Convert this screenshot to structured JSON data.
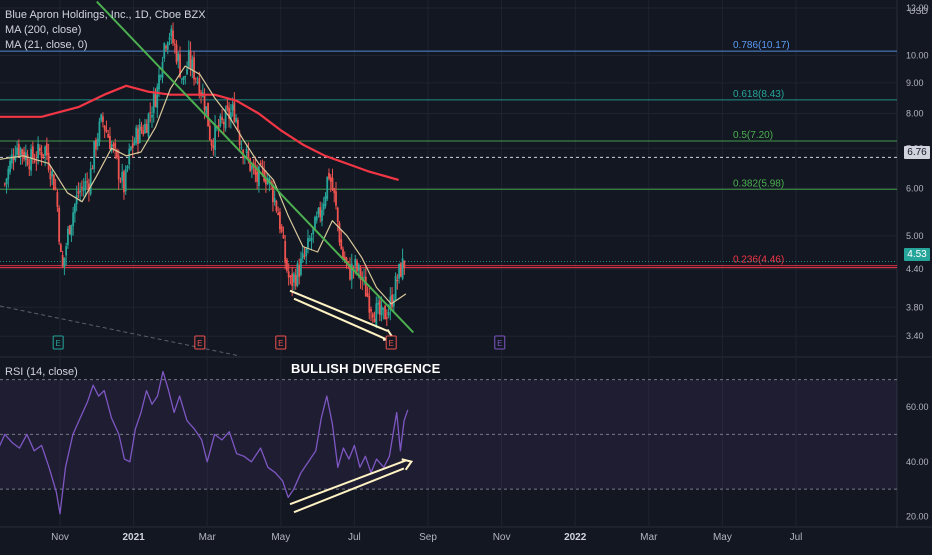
{
  "header": {
    "title": "Blue Apron Holdings, Inc., 1D, Cboe BZX",
    "ma200_label": "MA (200, close)",
    "ma21_label": "MA (21, close, 0)",
    "rsi_label": "RSI (14, close)",
    "annotation": "BULLISH DIVERGENCE",
    "currency": "USD"
  },
  "colors": {
    "background": "#131722",
    "up": "#26a69a",
    "down": "#ef5350",
    "ma200": "#f23645",
    "ma21": "#d8c89a",
    "trendline": "#4caf50",
    "rsi": "#7e57c2",
    "fib_786": "#5b9cf6",
    "fib_618": "#26a69a",
    "fib_5": "#4caf50",
    "fib_382": "#4caf50",
    "fib_236": "#f23645",
    "divergence": "#fff3c4"
  },
  "chart_data": {
    "type": "candlestick",
    "symbol": "Blue Apron Holdings, Inc.",
    "interval": "1D",
    "exchange": "Cboe BZX",
    "price_axis": {
      "scale": "log",
      "range": [
        3.2,
        12.0
      ],
      "ticks": [
        "12.00",
        "10.00",
        "9.00",
        "8.00",
        "7.00",
        "6.00",
        "5.00",
        "4.40",
        "3.80",
        "3.40"
      ],
      "tick_values": [
        12.0,
        10.0,
        9.0,
        8.0,
        7.0,
        6.0,
        5.0,
        4.4,
        3.8,
        3.4
      ]
    },
    "rsi_axis": {
      "range": [
        18,
        75
      ],
      "ticks": [
        "60.00",
        "40.00",
        "20.00"
      ],
      "tick_values": [
        60,
        40,
        20
      ],
      "bands": [
        70,
        50,
        30
      ]
    },
    "time_axis": {
      "ticks": [
        "Nov",
        "2021",
        "Mar",
        "May",
        "Jul",
        "Sep",
        "Nov",
        "2022",
        "Mar",
        "May",
        "Jul"
      ],
      "tick_month_index": [
        0,
        2,
        4,
        6,
        8,
        10,
        12,
        14,
        16,
        18,
        20
      ]
    },
    "last_price_labels": [
      {
        "text": "6.76",
        "value": 6.76
      },
      {
        "text": "4.53",
        "value": 4.53
      }
    ],
    "fibonacci": [
      {
        "label": "0.786(10.17)",
        "value": 10.17
      },
      {
        "label": "0.618(8.43)",
        "value": 8.43
      },
      {
        "label": "0.5(7.20)",
        "value": 7.2
      },
      {
        "label": "0.382(5.98)",
        "value": 5.98
      },
      {
        "label": "0.236(4.46)",
        "value": 4.46
      }
    ],
    "horizontal_levels": [
      {
        "name": "red-level",
        "value": 4.46
      },
      {
        "name": "dashed-level",
        "value": 6.76
      },
      {
        "name": "teal-level",
        "value": 4.53
      }
    ],
    "earnings_markers": [
      {
        "label": "E",
        "month_index": -0.05,
        "color": "#26a69a"
      },
      {
        "label": "E",
        "month_index": 3.8,
        "color": "#ef5350"
      },
      {
        "label": "E",
        "month_index": 6.0,
        "color": "#ef5350"
      },
      {
        "label": "E",
        "month_index": 9.0,
        "color": "#ef5350"
      },
      {
        "label": "E",
        "month_index": 11.95,
        "color": "#7e57c2"
      }
    ],
    "trendline": {
      "from": {
        "month_index": 1.0,
        "value": 12.3
      },
      "to": {
        "month_index": 9.6,
        "value": 3.45
      }
    },
    "price_divergence_arrow": {
      "from": {
        "month_index": 6.25,
        "value": 4.05
      },
      "to": {
        "month_index": 8.9,
        "value": 3.47
      }
    },
    "rsi_divergence_arrow": {
      "from": {
        "month_index": 6.25,
        "value": 24.5
      },
      "to": {
        "month_index": 9.4,
        "value": 40.5
      }
    },
    "anchors": [
      {
        "m": -1.5,
        "p": 6.1
      },
      {
        "m": -1.2,
        "p": 7.1
      },
      {
        "m": -0.8,
        "p": 6.7
      },
      {
        "m": -0.4,
        "p": 7.0
      },
      {
        "m": -0.1,
        "p": 5.9
      },
      {
        "m": 0.05,
        "p": 4.3
      },
      {
        "m": 0.25,
        "p": 5.2
      },
      {
        "m": 0.5,
        "p": 5.9
      },
      {
        "m": 0.8,
        "p": 6.2
      },
      {
        "m": 1.0,
        "p": 7.3
      },
      {
        "m": 1.15,
        "p": 7.8
      },
      {
        "m": 1.4,
        "p": 7.1
      },
      {
        "m": 1.6,
        "p": 6.4
      },
      {
        "m": 1.75,
        "p": 6.0
      },
      {
        "m": 1.9,
        "p": 6.9
      },
      {
        "m": 2.1,
        "p": 7.4
      },
      {
        "m": 2.3,
        "p": 7.6
      },
      {
        "m": 2.5,
        "p": 8.2
      },
      {
        "m": 2.65,
        "p": 8.8
      },
      {
        "m": 2.8,
        "p": 10.3
      },
      {
        "m": 2.95,
        "p": 11.0
      },
      {
        "m": 3.15,
        "p": 10.2
      },
      {
        "m": 3.35,
        "p": 9.0
      },
      {
        "m": 3.5,
        "p": 9.8
      },
      {
        "m": 3.75,
        "p": 9.1
      },
      {
        "m": 3.95,
        "p": 8.3
      },
      {
        "m": 4.1,
        "p": 7.2
      },
      {
        "m": 4.35,
        "p": 7.6
      },
      {
        "m": 4.55,
        "p": 7.9
      },
      {
        "m": 4.75,
        "p": 8.1
      },
      {
        "m": 4.9,
        "p": 7.2
      },
      {
        "m": 5.1,
        "p": 6.7
      },
      {
        "m": 5.35,
        "p": 6.2
      },
      {
        "m": 5.55,
        "p": 6.4
      },
      {
        "m": 5.75,
        "p": 6.0
      },
      {
        "m": 5.95,
        "p": 5.4
      },
      {
        "m": 6.1,
        "p": 4.6
      },
      {
        "m": 6.25,
        "p": 4.15
      },
      {
        "m": 6.45,
        "p": 4.35
      },
      {
        "m": 6.65,
        "p": 4.6
      },
      {
        "m": 6.85,
        "p": 5.0
      },
      {
        "m": 7.05,
        "p": 5.4
      },
      {
        "m": 7.2,
        "p": 5.9
      },
      {
        "m": 7.3,
        "p": 6.4
      },
      {
        "m": 7.45,
        "p": 5.8
      },
      {
        "m": 7.65,
        "p": 4.7
      },
      {
        "m": 7.85,
        "p": 4.35
      },
      {
        "m": 8.0,
        "p": 4.45
      },
      {
        "m": 8.2,
        "p": 4.25
      },
      {
        "m": 8.4,
        "p": 3.9
      },
      {
        "m": 8.55,
        "p": 3.75
      },
      {
        "m": 8.75,
        "p": 3.65
      },
      {
        "m": 8.95,
        "p": 3.8
      },
      {
        "m": 9.1,
        "p": 4.1
      },
      {
        "m": 9.25,
        "p": 4.4
      },
      {
        "m": 9.4,
        "p": 4.55
      }
    ],
    "ma200": [
      {
        "m": -1.7,
        "p": 7.9
      },
      {
        "m": -0.5,
        "p": 7.9
      },
      {
        "m": 0.5,
        "p": 8.2
      },
      {
        "m": 1.2,
        "p": 8.6
      },
      {
        "m": 1.8,
        "p": 8.9
      },
      {
        "m": 2.4,
        "p": 8.7
      },
      {
        "m": 3.0,
        "p": 8.6
      },
      {
        "m": 3.6,
        "p": 8.6
      },
      {
        "m": 4.2,
        "p": 8.6
      },
      {
        "m": 4.8,
        "p": 8.4
      },
      {
        "m": 5.4,
        "p": 8.0
      },
      {
        "m": 6.0,
        "p": 7.5
      },
      {
        "m": 6.6,
        "p": 7.1
      },
      {
        "m": 7.2,
        "p": 6.8
      },
      {
        "m": 7.8,
        "p": 6.6
      },
      {
        "m": 8.4,
        "p": 6.4
      },
      {
        "m": 9.2,
        "p": 6.2
      }
    ],
    "ma21": [
      {
        "m": -1.7,
        "p": 6.7
      },
      {
        "m": -1.0,
        "p": 6.8
      },
      {
        "m": -0.3,
        "p": 6.6
      },
      {
        "m": 0.2,
        "p": 5.9
      },
      {
        "m": 0.6,
        "p": 5.7
      },
      {
        "m": 1.0,
        "p": 6.3
      },
      {
        "m": 1.4,
        "p": 7.0
      },
      {
        "m": 1.8,
        "p": 6.8
      },
      {
        "m": 2.2,
        "p": 6.9
      },
      {
        "m": 2.6,
        "p": 7.6
      },
      {
        "m": 3.0,
        "p": 8.8
      },
      {
        "m": 3.4,
        "p": 9.6
      },
      {
        "m": 3.8,
        "p": 9.3
      },
      {
        "m": 4.2,
        "p": 8.5
      },
      {
        "m": 4.6,
        "p": 7.9
      },
      {
        "m": 5.0,
        "p": 7.2
      },
      {
        "m": 5.4,
        "p": 6.6
      },
      {
        "m": 5.8,
        "p": 6.2
      },
      {
        "m": 6.2,
        "p": 5.4
      },
      {
        "m": 6.6,
        "p": 4.8
      },
      {
        "m": 7.0,
        "p": 4.7
      },
      {
        "m": 7.4,
        "p": 5.3
      },
      {
        "m": 7.8,
        "p": 5.0
      },
      {
        "m": 8.2,
        "p": 4.6
      },
      {
        "m": 8.6,
        "p": 4.1
      },
      {
        "m": 9.0,
        "p": 3.85
      },
      {
        "m": 9.4,
        "p": 4.0
      }
    ],
    "rsi": [
      {
        "m": -1.7,
        "p": 44
      },
      {
        "m": -1.5,
        "p": 50
      },
      {
        "m": -1.3,
        "p": 47
      },
      {
        "m": -1.1,
        "p": 45
      },
      {
        "m": -0.9,
        "p": 50
      },
      {
        "m": -0.7,
        "p": 44
      },
      {
        "m": -0.5,
        "p": 46
      },
      {
        "m": -0.3,
        "p": 38
      },
      {
        "m": -0.1,
        "p": 29
      },
      {
        "m": 0.0,
        "p": 21
      },
      {
        "m": 0.15,
        "p": 38
      },
      {
        "m": 0.35,
        "p": 50
      },
      {
        "m": 0.55,
        "p": 56
      },
      {
        "m": 0.75,
        "p": 62
      },
      {
        "m": 0.9,
        "p": 68
      },
      {
        "m": 1.05,
        "p": 64
      },
      {
        "m": 1.2,
        "p": 66
      },
      {
        "m": 1.4,
        "p": 56
      },
      {
        "m": 1.6,
        "p": 50
      },
      {
        "m": 1.75,
        "p": 41
      },
      {
        "m": 1.9,
        "p": 40
      },
      {
        "m": 2.05,
        "p": 52
      },
      {
        "m": 2.2,
        "p": 58
      },
      {
        "m": 2.35,
        "p": 66
      },
      {
        "m": 2.5,
        "p": 61
      },
      {
        "m": 2.65,
        "p": 64
      },
      {
        "m": 2.8,
        "p": 73
      },
      {
        "m": 2.95,
        "p": 66
      },
      {
        "m": 3.1,
        "p": 58
      },
      {
        "m": 3.25,
        "p": 64
      },
      {
        "m": 3.45,
        "p": 55
      },
      {
        "m": 3.65,
        "p": 52
      },
      {
        "m": 3.85,
        "p": 48
      },
      {
        "m": 4.0,
        "p": 40
      },
      {
        "m": 4.2,
        "p": 50
      },
      {
        "m": 4.4,
        "p": 48
      },
      {
        "m": 4.6,
        "p": 51
      },
      {
        "m": 4.8,
        "p": 43
      },
      {
        "m": 5.0,
        "p": 42
      },
      {
        "m": 5.2,
        "p": 40
      },
      {
        "m": 5.45,
        "p": 45
      },
      {
        "m": 5.65,
        "p": 38
      },
      {
        "m": 5.85,
        "p": 36
      },
      {
        "m": 6.05,
        "p": 33
      },
      {
        "m": 6.2,
        "p": 27
      },
      {
        "m": 6.35,
        "p": 30
      },
      {
        "m": 6.55,
        "p": 36
      },
      {
        "m": 6.75,
        "p": 40
      },
      {
        "m": 6.95,
        "p": 44
      },
      {
        "m": 7.1,
        "p": 56
      },
      {
        "m": 7.25,
        "p": 64
      },
      {
        "m": 7.4,
        "p": 54
      },
      {
        "m": 7.55,
        "p": 38
      },
      {
        "m": 7.7,
        "p": 45
      },
      {
        "m": 7.85,
        "p": 41
      },
      {
        "m": 8.0,
        "p": 46
      },
      {
        "m": 8.15,
        "p": 38
      },
      {
        "m": 8.3,
        "p": 42
      },
      {
        "m": 8.45,
        "p": 36
      },
      {
        "m": 8.6,
        "p": 41
      },
      {
        "m": 8.8,
        "p": 38
      },
      {
        "m": 8.95,
        "p": 42
      },
      {
        "m": 9.05,
        "p": 50
      },
      {
        "m": 9.15,
        "p": 58
      },
      {
        "m": 9.25,
        "p": 44
      },
      {
        "m": 9.35,
        "p": 55
      },
      {
        "m": 9.45,
        "p": 59
      }
    ]
  }
}
